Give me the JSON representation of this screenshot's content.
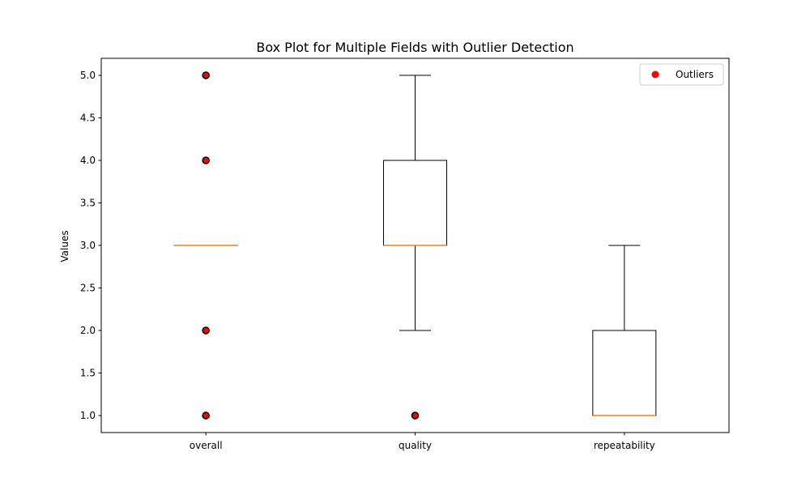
{
  "chart_data": {
    "type": "box",
    "title": "Box Plot for Multiple Fields with Outlier Detection",
    "xlabel": "",
    "ylabel": "Values",
    "ylim": [
      0.8,
      5.2
    ],
    "yticks": [
      1.0,
      1.5,
      2.0,
      2.5,
      3.0,
      3.5,
      4.0,
      4.5,
      5.0
    ],
    "ytick_labels": [
      "1.0",
      "1.5",
      "2.0",
      "2.5",
      "3.0",
      "3.5",
      "4.0",
      "4.5",
      "5.0"
    ],
    "grid": false,
    "legend_position": "top-right",
    "categories": [
      "overall",
      "quality",
      "repeatability"
    ],
    "boxes": [
      {
        "category": "overall",
        "whisker_low": 3.0,
        "q1": 3.0,
        "median": 3.0,
        "q3": 3.0,
        "whisker_high": 3.0,
        "outliers": [
          1.0,
          2.0,
          4.0,
          5.0
        ]
      },
      {
        "category": "quality",
        "whisker_low": 2.0,
        "q1": 3.0,
        "median": 3.0,
        "q3": 4.0,
        "whisker_high": 5.0,
        "outliers": [
          1.0
        ]
      },
      {
        "category": "repeatability",
        "whisker_low": 1.0,
        "q1": 1.0,
        "median": 1.0,
        "q3": 2.0,
        "whisker_high": 3.0,
        "outliers": []
      }
    ],
    "legend": [
      {
        "label": "Outliers",
        "color": "#ff0000"
      }
    ],
    "colors": {
      "box": "#000000",
      "median": "#ff7f0e",
      "outlier_fill": "#ff0000",
      "outlier_edge": "#000000"
    }
  }
}
